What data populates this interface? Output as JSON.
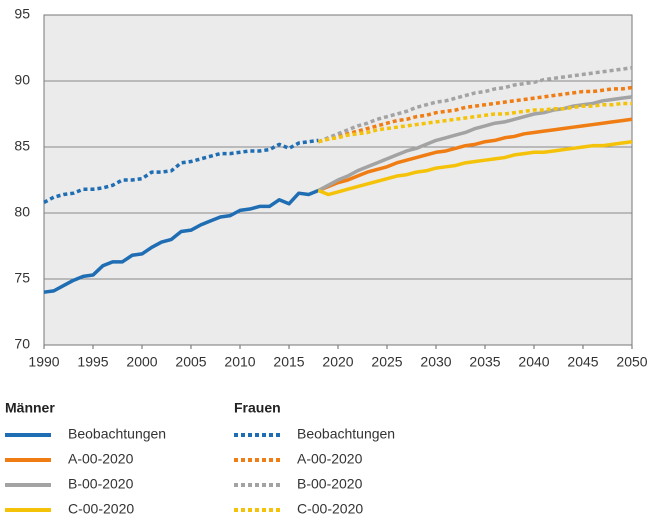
{
  "chart_data": {
    "type": "line",
    "x": [
      1990,
      1991,
      1992,
      1993,
      1994,
      1995,
      1996,
      1997,
      1998,
      1999,
      2000,
      2001,
      2002,
      2003,
      2004,
      2005,
      2006,
      2007,
      2008,
      2009,
      2010,
      2011,
      2012,
      2013,
      2014,
      2015,
      2016,
      2017,
      2018,
      2019,
      2020,
      2021,
      2022,
      2023,
      2024,
      2025,
      2026,
      2027,
      2028,
      2029,
      2030,
      2031,
      2032,
      2033,
      2034,
      2035,
      2036,
      2037,
      2038,
      2039,
      2040,
      2041,
      2042,
      2043,
      2044,
      2045,
      2046,
      2047,
      2048,
      2049,
      2050
    ],
    "legend_groups": [
      "Männer",
      "Frauen"
    ],
    "series": [
      {
        "name": "Beobachtungen",
        "group": 0,
        "dashed": false,
        "color": "#1f6db3",
        "values": [
          74.0,
          74.1,
          74.5,
          74.9,
          75.2,
          75.3,
          76.0,
          76.3,
          76.3,
          76.8,
          76.9,
          77.4,
          77.8,
          78.0,
          78.6,
          78.7,
          79.1,
          79.4,
          79.7,
          79.8,
          80.2,
          80.3,
          80.5,
          80.5,
          81.0,
          80.7,
          81.5,
          81.4,
          81.7,
          null,
          null,
          null,
          null,
          null,
          null,
          null,
          null,
          null,
          null,
          null,
          null,
          null,
          null,
          null,
          null,
          null,
          null,
          null,
          null,
          null,
          null,
          null,
          null,
          null,
          null,
          null,
          null,
          null,
          null,
          null,
          null
        ]
      },
      {
        "name": "A-00-2020",
        "group": 0,
        "dashed": false,
        "color": "#ef7d14",
        "values": [
          null,
          null,
          null,
          null,
          null,
          null,
          null,
          null,
          null,
          null,
          null,
          null,
          null,
          null,
          null,
          null,
          null,
          null,
          null,
          null,
          null,
          null,
          null,
          null,
          null,
          null,
          null,
          null,
          81.7,
          82.0,
          82.3,
          82.5,
          82.8,
          83.1,
          83.3,
          83.5,
          83.8,
          84.0,
          84.2,
          84.4,
          84.6,
          84.7,
          84.9,
          85.1,
          85.2,
          85.4,
          85.5,
          85.7,
          85.8,
          86.0,
          86.1,
          86.2,
          86.3,
          86.4,
          86.5,
          86.6,
          86.7,
          86.8,
          86.9,
          87.0,
          87.1
        ]
      },
      {
        "name": "B-00-2020",
        "group": 0,
        "dashed": false,
        "color": "#a3a3a3",
        "values": [
          null,
          null,
          null,
          null,
          null,
          null,
          null,
          null,
          null,
          null,
          null,
          null,
          null,
          null,
          null,
          null,
          null,
          null,
          null,
          null,
          null,
          null,
          null,
          null,
          null,
          null,
          null,
          null,
          81.7,
          82.1,
          82.5,
          82.8,
          83.2,
          83.5,
          83.8,
          84.1,
          84.4,
          84.7,
          84.9,
          85.2,
          85.5,
          85.7,
          85.9,
          86.1,
          86.4,
          86.6,
          86.8,
          86.9,
          87.1,
          87.3,
          87.5,
          87.6,
          87.8,
          87.9,
          88.1,
          88.2,
          88.3,
          88.5,
          88.6,
          88.7,
          88.8
        ]
      },
      {
        "name": "C-00-2020",
        "group": 0,
        "dashed": false,
        "color": "#f5c20a",
        "values": [
          null,
          null,
          null,
          null,
          null,
          null,
          null,
          null,
          null,
          null,
          null,
          null,
          null,
          null,
          null,
          null,
          null,
          null,
          null,
          null,
          null,
          null,
          null,
          null,
          null,
          null,
          null,
          null,
          81.7,
          81.4,
          81.6,
          81.8,
          82.0,
          82.2,
          82.4,
          82.6,
          82.8,
          82.9,
          83.1,
          83.2,
          83.4,
          83.5,
          83.6,
          83.8,
          83.9,
          84.0,
          84.1,
          84.2,
          84.4,
          84.5,
          84.6,
          84.6,
          84.7,
          84.8,
          84.9,
          85.0,
          85.1,
          85.1,
          85.2,
          85.3,
          85.4
        ]
      },
      {
        "name": "Beobachtungen",
        "group": 1,
        "dashed": true,
        "color": "#1f6db3",
        "values": [
          80.8,
          81.2,
          81.4,
          81.5,
          81.8,
          81.8,
          81.9,
          82.1,
          82.5,
          82.5,
          82.6,
          83.1,
          83.1,
          83.2,
          83.8,
          83.9,
          84.1,
          84.3,
          84.5,
          84.5,
          84.6,
          84.7,
          84.7,
          84.8,
          85.2,
          84.9,
          85.3,
          85.4,
          85.5,
          null,
          null,
          null,
          null,
          null,
          null,
          null,
          null,
          null,
          null,
          null,
          null,
          null,
          null,
          null,
          null,
          null,
          null,
          null,
          null,
          null,
          null,
          null,
          null,
          null,
          null,
          null,
          null,
          null,
          null,
          null,
          null
        ]
      },
      {
        "name": "A-00-2020",
        "group": 1,
        "dashed": true,
        "color": "#ef7d14",
        "values": [
          null,
          null,
          null,
          null,
          null,
          null,
          null,
          null,
          null,
          null,
          null,
          null,
          null,
          null,
          null,
          null,
          null,
          null,
          null,
          null,
          null,
          null,
          null,
          null,
          null,
          null,
          null,
          null,
          85.4,
          85.6,
          85.8,
          86.0,
          86.2,
          86.4,
          86.6,
          86.8,
          87.0,
          87.1,
          87.3,
          87.4,
          87.6,
          87.7,
          87.8,
          88.0,
          88.1,
          88.2,
          88.3,
          88.4,
          88.5,
          88.6,
          88.7,
          88.8,
          88.9,
          89.0,
          89.1,
          89.2,
          89.2,
          89.3,
          89.4,
          89.4,
          89.5
        ]
      },
      {
        "name": "B-00-2020",
        "group": 1,
        "dashed": true,
        "color": "#a3a3a3",
        "values": [
          null,
          null,
          null,
          null,
          null,
          null,
          null,
          null,
          null,
          null,
          null,
          null,
          null,
          null,
          null,
          null,
          null,
          null,
          null,
          null,
          null,
          null,
          null,
          null,
          null,
          null,
          null,
          null,
          85.4,
          85.7,
          86.0,
          86.3,
          86.6,
          86.8,
          87.1,
          87.3,
          87.5,
          87.7,
          88.0,
          88.2,
          88.4,
          88.5,
          88.7,
          88.9,
          89.1,
          89.2,
          89.4,
          89.5,
          89.7,
          89.8,
          89.9,
          90.1,
          90.2,
          90.3,
          90.4,
          90.5,
          90.6,
          90.7,
          90.8,
          90.9,
          91.0
        ]
      },
      {
        "name": "C-00-2020",
        "group": 1,
        "dashed": true,
        "color": "#f5c20a",
        "values": [
          null,
          null,
          null,
          null,
          null,
          null,
          null,
          null,
          null,
          null,
          null,
          null,
          null,
          null,
          null,
          null,
          null,
          null,
          null,
          null,
          null,
          null,
          null,
          null,
          null,
          null,
          null,
          null,
          85.4,
          85.6,
          85.7,
          85.9,
          86.0,
          86.1,
          86.3,
          86.4,
          86.5,
          86.6,
          86.7,
          86.8,
          86.9,
          87.0,
          87.1,
          87.2,
          87.3,
          87.4,
          87.5,
          87.5,
          87.6,
          87.7,
          87.8,
          87.8,
          87.9,
          87.9,
          88.0,
          88.1,
          88.1,
          88.2,
          88.2,
          88.3,
          88.3
        ]
      }
    ],
    "xlim": [
      1990,
      2050
    ],
    "xticks": [
      1990,
      1995,
      2000,
      2005,
      2010,
      2015,
      2020,
      2025,
      2030,
      2035,
      2040,
      2045,
      2050
    ],
    "ylim": [
      70,
      95
    ],
    "yticks": [
      70,
      75,
      80,
      85,
      90,
      95
    ],
    "grid": true
  }
}
